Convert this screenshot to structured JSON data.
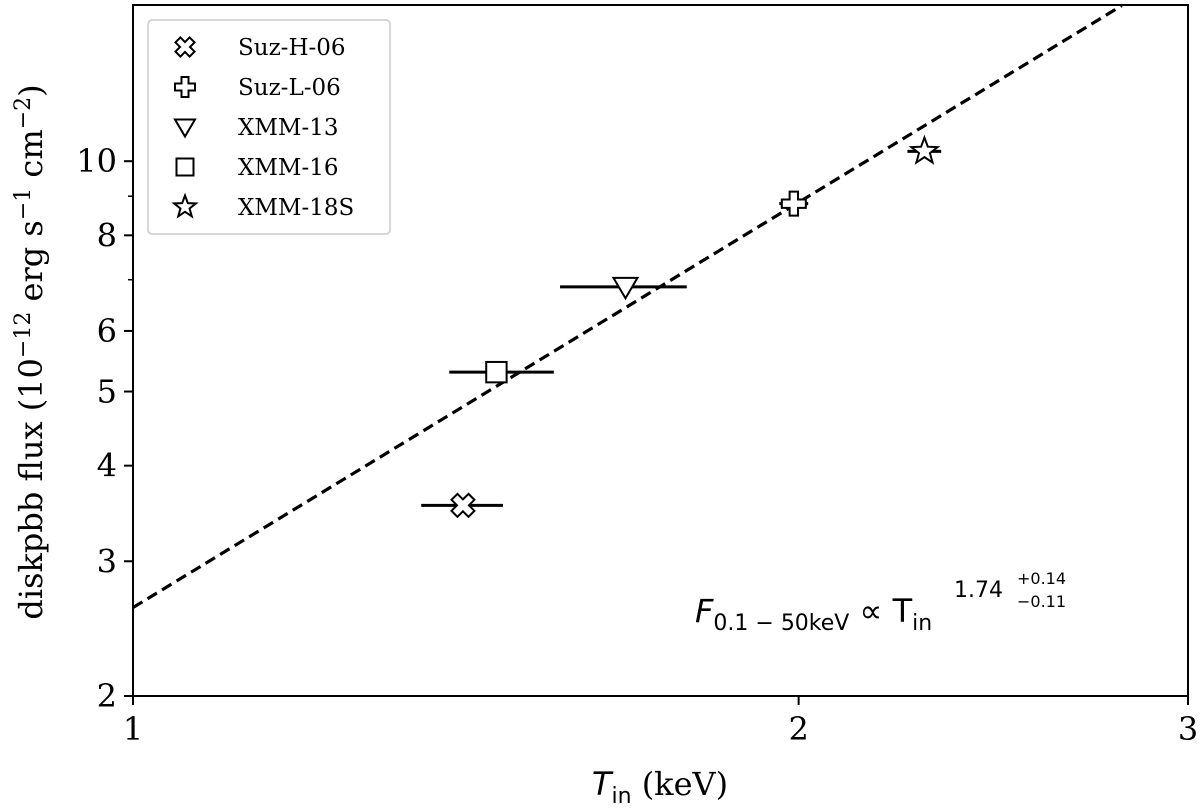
{
  "chart_data": {
    "type": "scatter",
    "xscale": "log",
    "yscale": "log",
    "xlim": [
      1.0,
      3.0
    ],
    "ylim": [
      2.0,
      16.0
    ],
    "x_ticks": [
      {
        "value": 1,
        "label": "1"
      },
      {
        "value": 2,
        "label": "2"
      },
      {
        "value": 3,
        "label": "3"
      }
    ],
    "y_ticks": [
      {
        "value": 2,
        "label": "2"
      },
      {
        "value": 3,
        "label": "3"
      },
      {
        "value": 4,
        "label": "4"
      },
      {
        "value": 5,
        "label": "5"
      },
      {
        "value": 6,
        "label": "6"
      },
      {
        "value": 8,
        "label": "8"
      },
      {
        "value": 10,
        "label": "10"
      }
    ],
    "y_minor_ticks": [
      7,
      9
    ],
    "xlabel": {
      "main": "T",
      "sub": "in",
      "rest": " (keV)"
    },
    "ylabel": {
      "pre": "diskpbb flux (10",
      "sup1": "−12",
      "mid1": " erg s",
      "sup2": "−1",
      "mid2": " cm",
      "sup3": "−2",
      "post": ")"
    },
    "series": [
      {
        "name": "Suz-H-06",
        "marker": "x-cross",
        "x": 1.41,
        "y": 3.55,
        "xerr": [
          1.35,
          1.47
        ]
      },
      {
        "name": "Suz-L-06",
        "marker": "plus",
        "x": 1.99,
        "y": 8.8,
        "xerr": [
          1.96,
          2.02
        ]
      },
      {
        "name": "XMM-13",
        "marker": "triangle-down",
        "x": 1.67,
        "y": 6.85,
        "xerr": [
          1.56,
          1.78
        ]
      },
      {
        "name": "XMM-16",
        "marker": "square",
        "x": 1.46,
        "y": 5.3,
        "xerr": [
          1.39,
          1.55
        ]
      },
      {
        "name": "XMM-18S",
        "marker": "star",
        "x": 2.28,
        "y": 10.3,
        "xerr": [
          2.24,
          2.32
        ]
      }
    ],
    "fit_line": {
      "style": "dashed",
      "points": [
        [
          1.0,
          2.61
        ],
        [
          2.8,
          15.97
        ]
      ]
    },
    "annotation": {
      "main": "F",
      "sub": "0.1 − 50keV",
      "mid": " ∝ T",
      "sub2": "in",
      "exp": "1.74",
      "exp_plus": "+0.14",
      "exp_minus": "−0.11"
    },
    "legend_position": "top-left",
    "grid": false
  }
}
